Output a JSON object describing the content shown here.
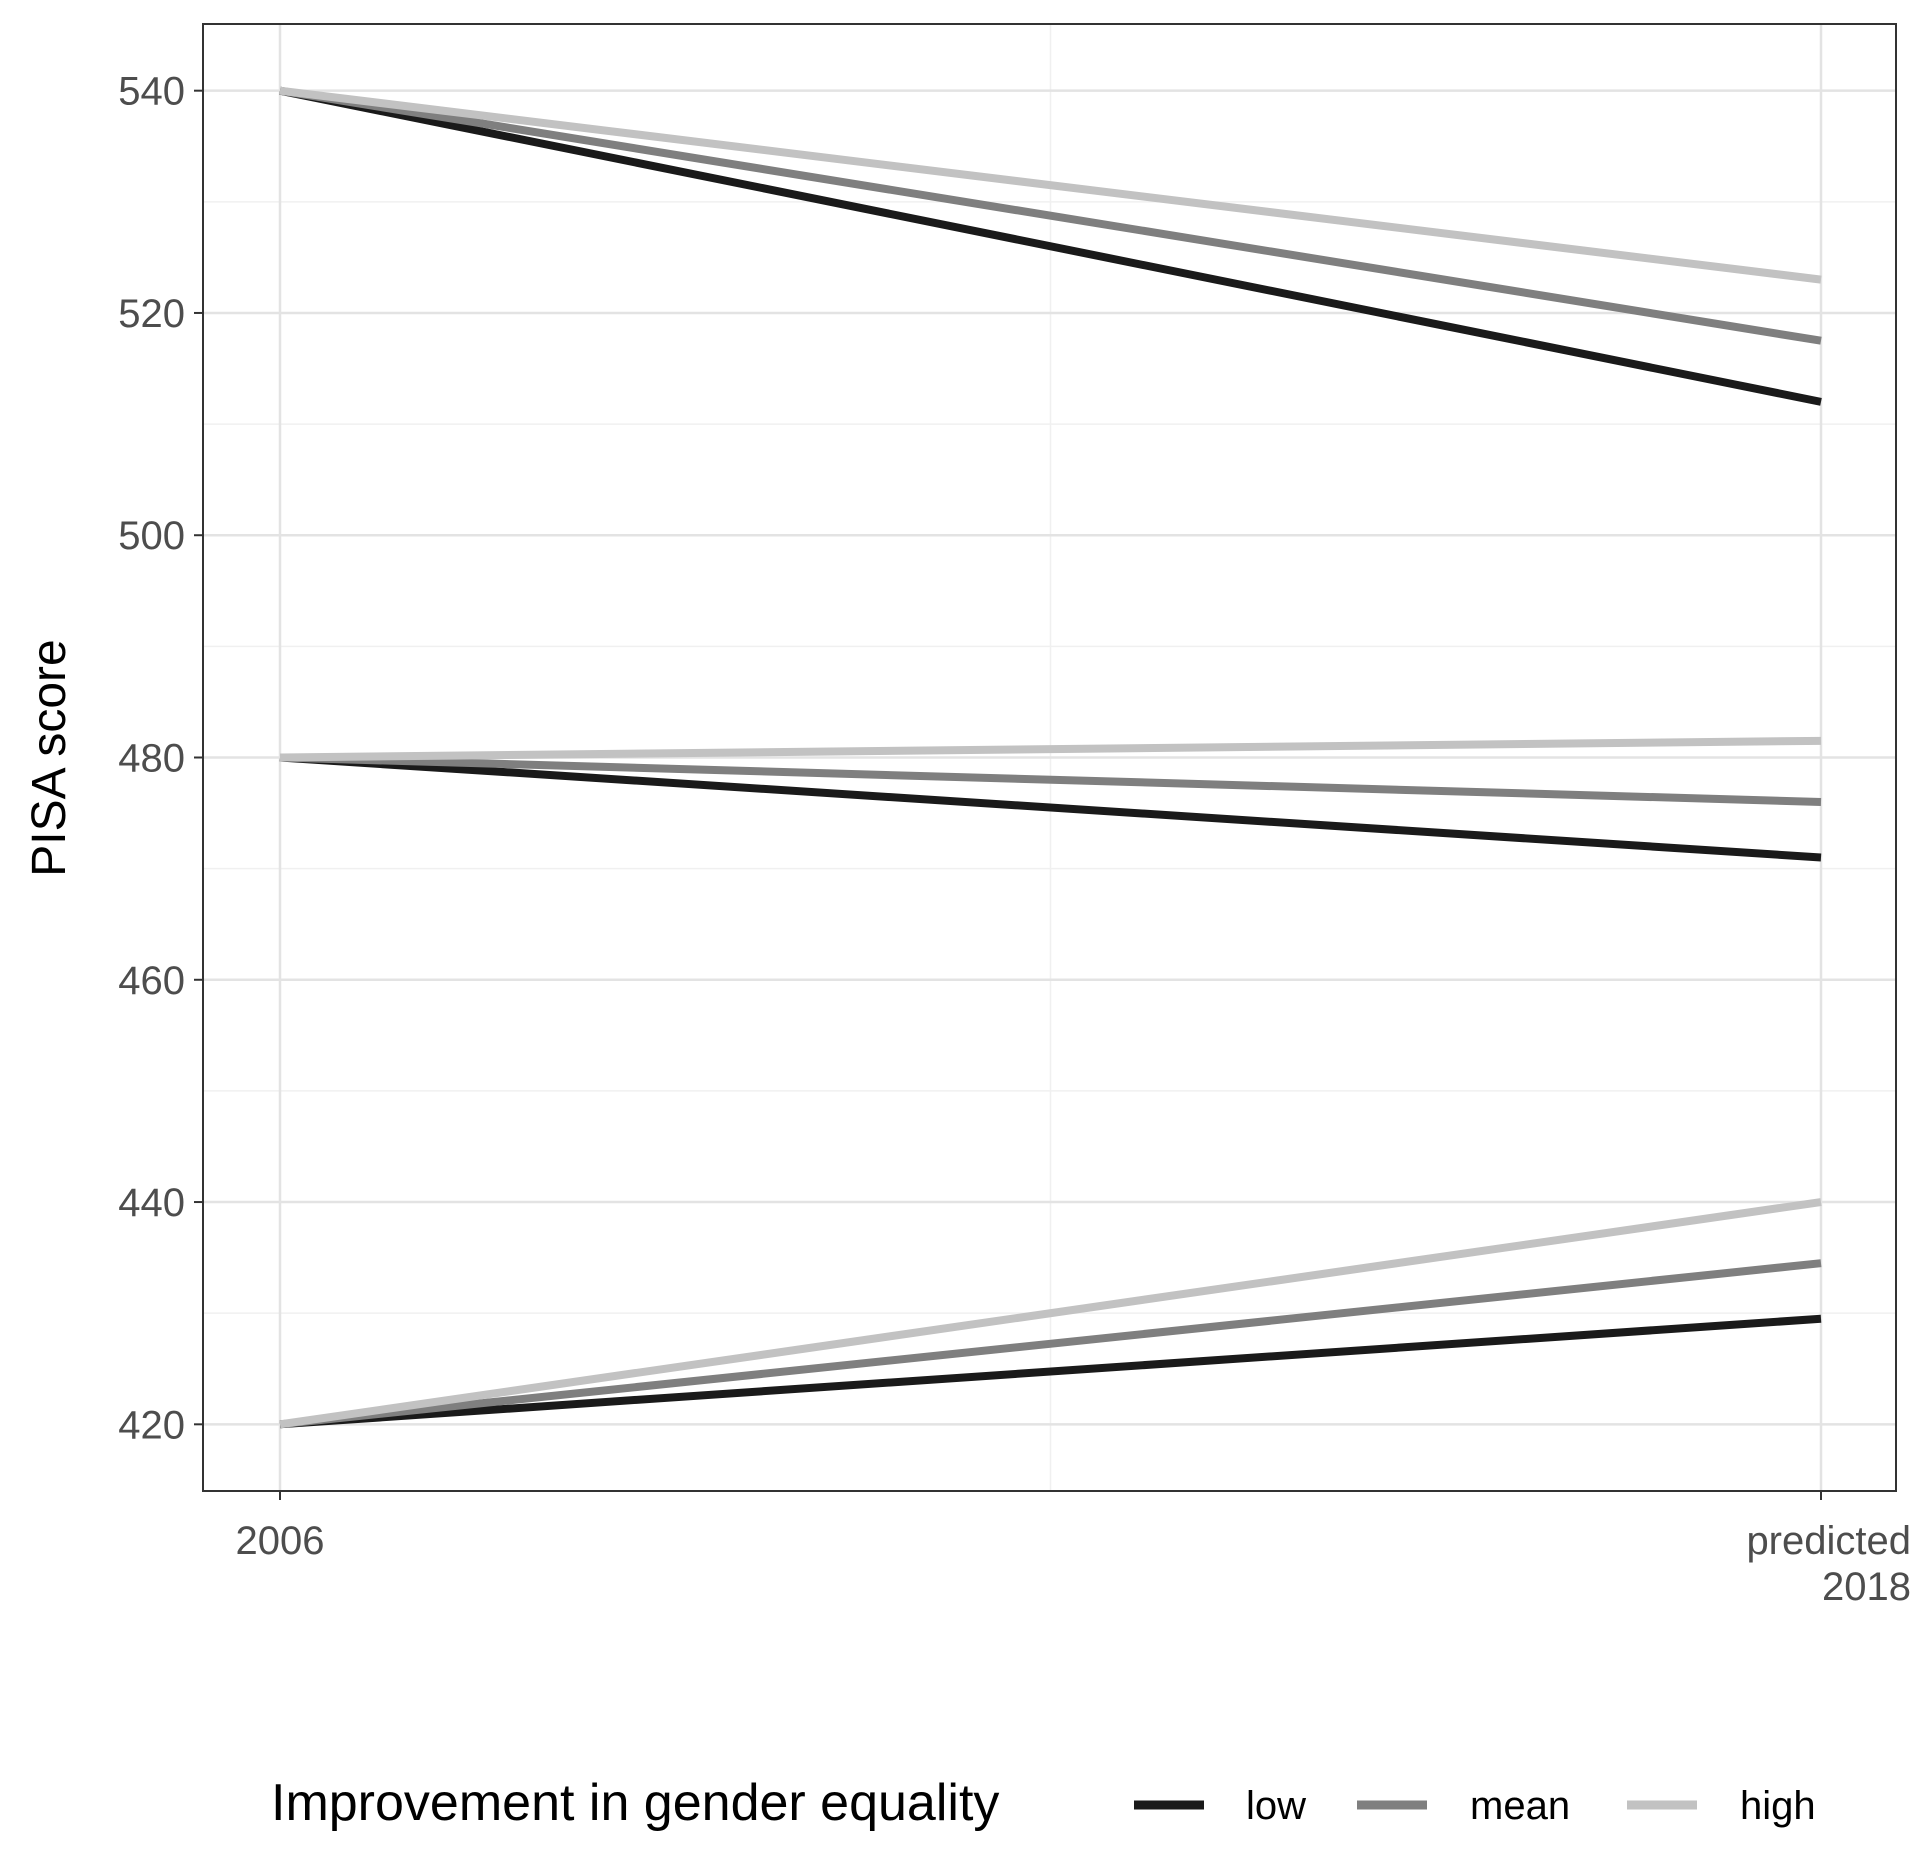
{
  "chart_data": {
    "type": "line",
    "title": "",
    "xlabel": "",
    "ylabel": "PISA score",
    "x": [
      "2006",
      "predicted 2018"
    ],
    "x_tick_labels": [
      [
        "2006"
      ],
      [
        "predicted",
        "2018"
      ]
    ],
    "ylim": [
      414,
      546
    ],
    "y_ticks": [
      420,
      440,
      460,
      480,
      500,
      520,
      540
    ],
    "grid": true,
    "legend": {
      "title": "Improvement in gender equality",
      "placement": "bottom",
      "entries": [
        {
          "label": "low",
          "color": "#1a1a1a"
        },
        {
          "label": "mean",
          "color": "#7f7f7f"
        },
        {
          "label": "high",
          "color": "#c2c2c2"
        }
      ]
    },
    "series": [
      {
        "name": "low",
        "group": "top",
        "color": "#1a1a1a",
        "values": [
          540,
          512
        ]
      },
      {
        "name": "mean",
        "group": "top",
        "color": "#7f7f7f",
        "values": [
          540,
          517.5
        ]
      },
      {
        "name": "high",
        "group": "top",
        "color": "#c2c2c2",
        "values": [
          540,
          523
        ]
      },
      {
        "name": "low",
        "group": "middle",
        "color": "#1a1a1a",
        "values": [
          480,
          471
        ]
      },
      {
        "name": "mean",
        "group": "middle",
        "color": "#7f7f7f",
        "values": [
          480,
          476
        ]
      },
      {
        "name": "high",
        "group": "middle",
        "color": "#c2c2c2",
        "values": [
          480,
          481.5
        ]
      },
      {
        "name": "low",
        "group": "bottom",
        "color": "#1a1a1a",
        "values": [
          420,
          429.5
        ]
      },
      {
        "name": "mean",
        "group": "bottom",
        "color": "#7f7f7f",
        "values": [
          420,
          434.5
        ]
      },
      {
        "name": "high",
        "group": "bottom",
        "color": "#c2c2c2",
        "values": [
          420,
          440
        ]
      }
    ]
  }
}
